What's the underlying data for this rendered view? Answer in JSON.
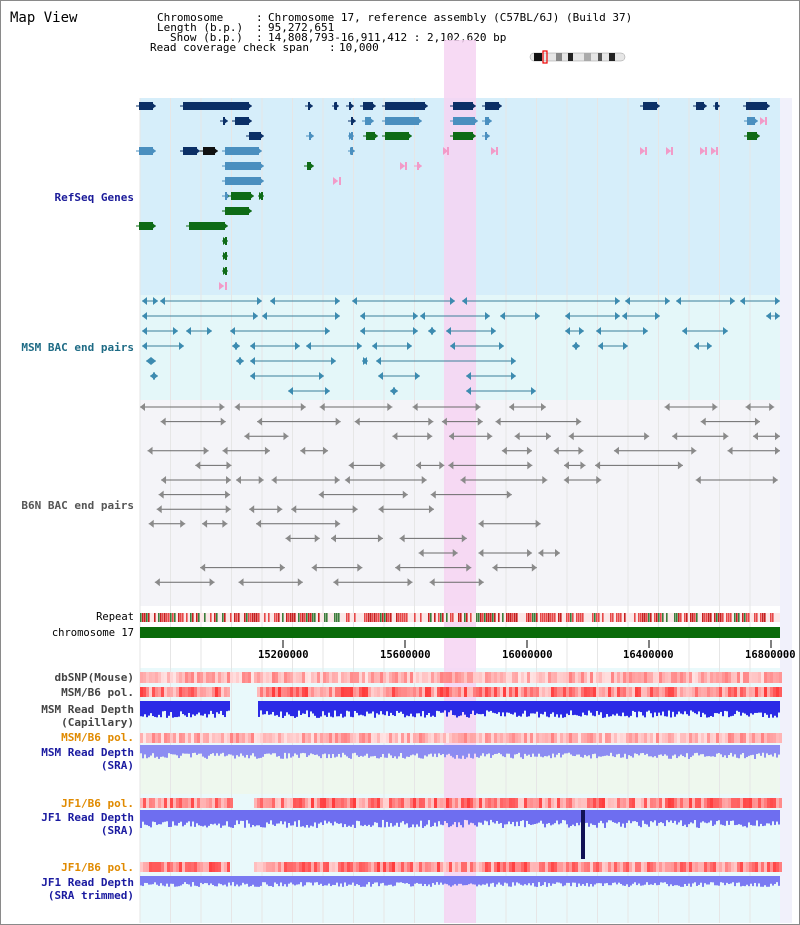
{
  "title": "Map View",
  "info": {
    "chromosome_key": "Chromosome",
    "chromosome_value": "Chromosome 17, reference assembly (C57BL/6J) (Build 37)",
    "length_key": "Length (b.p.)",
    "length_value": "95,272,651",
    "show_key": "Show (b.p.)",
    "show_value": "14,808,793-16,911,412 : 2,102,620 bp",
    "coverage_key": "Read coverage check span",
    "coverage_value": "10,000"
  },
  "tracks": {
    "refseq": "RefSeq Genes",
    "msm_bac": "MSM BAC end pairs",
    "b6n_bac": "B6N BAC end pairs",
    "repeat": "Repeat",
    "chromosome": "chromosome 17",
    "dbsnp": "dbSNP(Mouse)",
    "msm_b6_pol": "MSM/B6 pol.",
    "msm_depth_cap_1": "MSM Read Depth",
    "msm_depth_cap_2": "(Capillary)",
    "msm_b6_pol_2": "MSM/B6 pol.",
    "msm_depth_sra_1": "MSM Read Depth",
    "msm_depth_sra_2": "(SRA)",
    "jf1_b6_pol": "JF1/B6 pol.",
    "jf1_depth_sra_1": "JF1 Read Depth",
    "jf1_depth_sra_2": "(SRA)",
    "jf1_b6_pol_2": "JF1/B6 pol.",
    "jf1_depth_trim_1": "JF1 Read Depth",
    "jf1_depth_trim_2": "(SRA trimmed)"
  },
  "axis": {
    "ticks": [
      "15200000",
      "15600000",
      "16000000",
      "16400000",
      "16800000"
    ]
  },
  "colors": {
    "refseq_bg": "#d6eefa",
    "msm_bac_bg": "#e4f7f9",
    "b6n_bac_bg": "#f4f4f8",
    "highlight": "#f6d3f2",
    "refseq_label": "#1a1a99",
    "msm_label": "#1e6b85",
    "b6n_label": "#555555",
    "pol_label_orange": "#e08a00",
    "depth_label": "#1a1aa0"
  }
}
